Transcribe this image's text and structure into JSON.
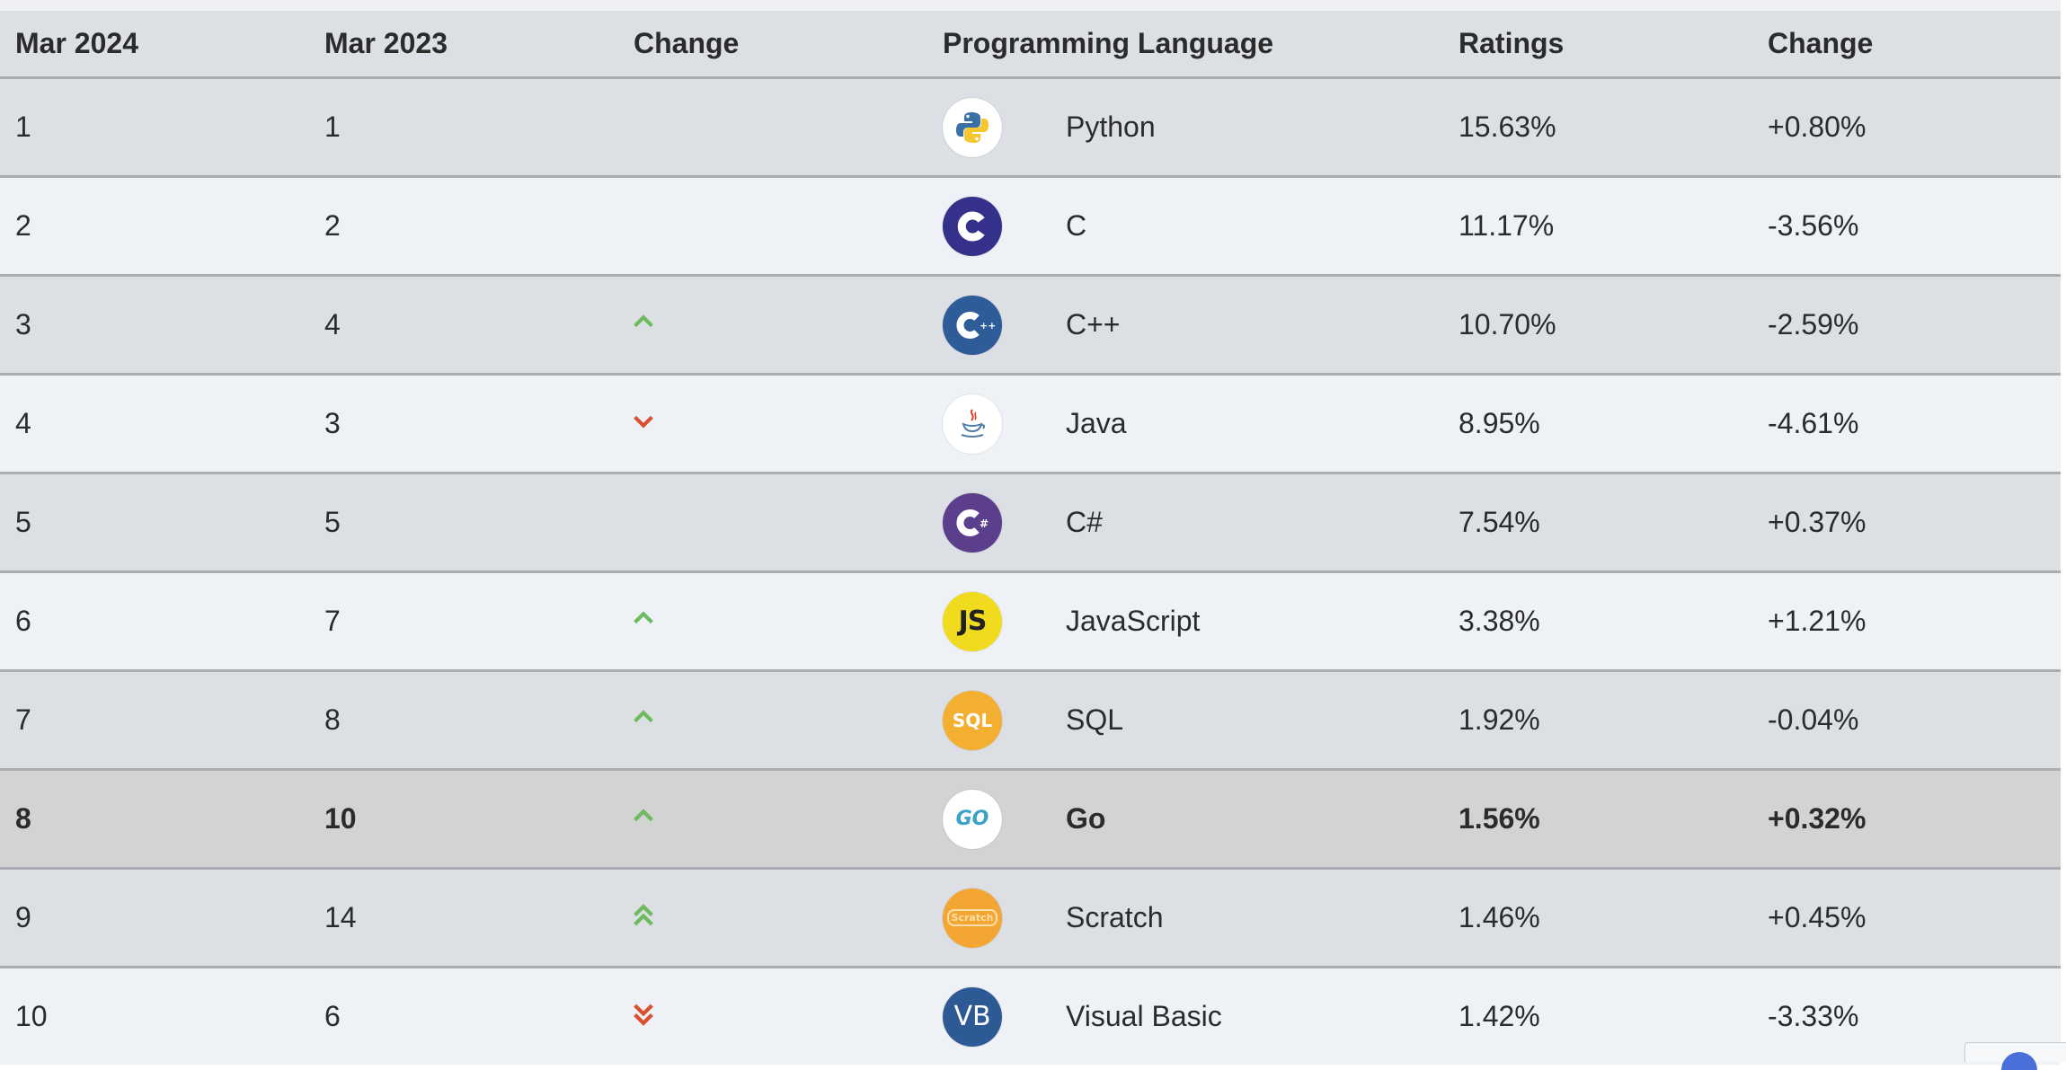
{
  "headers": [
    "Mar 2024",
    "Mar 2023",
    "Change",
    "Programming Language",
    "Ratings",
    "Change"
  ],
  "rows": [
    {
      "rank_2024": "1",
      "rank_2023": "1",
      "trend": "none",
      "icon": "python-logo-icon",
      "language": "Python",
      "rating": "15.63%",
      "change": "+0.80%"
    },
    {
      "rank_2024": "2",
      "rank_2023": "2",
      "trend": "none",
      "icon": "c-logo-icon",
      "language": "C",
      "rating": "11.17%",
      "change": "-3.56%"
    },
    {
      "rank_2024": "3",
      "rank_2023": "4",
      "trend": "up",
      "icon": "cpp-logo-icon",
      "language": "C++",
      "rating": "10.70%",
      "change": "-2.59%"
    },
    {
      "rank_2024": "4",
      "rank_2023": "3",
      "trend": "down",
      "icon": "java-logo-icon",
      "language": "Java",
      "rating": "8.95%",
      "change": "-4.61%"
    },
    {
      "rank_2024": "5",
      "rank_2023": "5",
      "trend": "none",
      "icon": "csharp-logo-icon",
      "language": "C#",
      "rating": "7.54%",
      "change": "+0.37%"
    },
    {
      "rank_2024": "6",
      "rank_2023": "7",
      "trend": "up",
      "icon": "javascript-logo-icon",
      "language": "JavaScript",
      "rating": "3.38%",
      "change": "+1.21%"
    },
    {
      "rank_2024": "7",
      "rank_2023": "8",
      "trend": "up",
      "icon": "sql-logo-icon",
      "language": "SQL",
      "rating": "1.92%",
      "change": "-0.04%"
    },
    {
      "rank_2024": "8",
      "rank_2023": "10",
      "trend": "up",
      "icon": "go-logo-icon",
      "language": "Go",
      "rating": "1.56%",
      "change": "+0.32%",
      "highlight": true
    },
    {
      "rank_2024": "9",
      "rank_2023": "14",
      "trend": "up2",
      "icon": "scratch-logo-icon",
      "language": "Scratch",
      "rating": "1.46%",
      "change": "+0.45%"
    },
    {
      "rank_2024": "10",
      "rank_2023": "6",
      "trend": "down2",
      "icon": "visual-basic-logo-icon",
      "language": "Visual Basic",
      "rating": "1.42%",
      "change": "-3.33%"
    }
  ],
  "logo_text": {
    "javascript": "JS",
    "sql": "SQL",
    "go": "GO",
    "visual_basic": "VB",
    "scratch": "Scratch"
  },
  "colors": {
    "up": "#6dbb5e",
    "down": "#d9502f",
    "header_bg": "#dcdfe4",
    "row_odd": "#dcdfe4",
    "row_even": "#eef1f6",
    "row_highlight": "#d3d3d3"
  }
}
